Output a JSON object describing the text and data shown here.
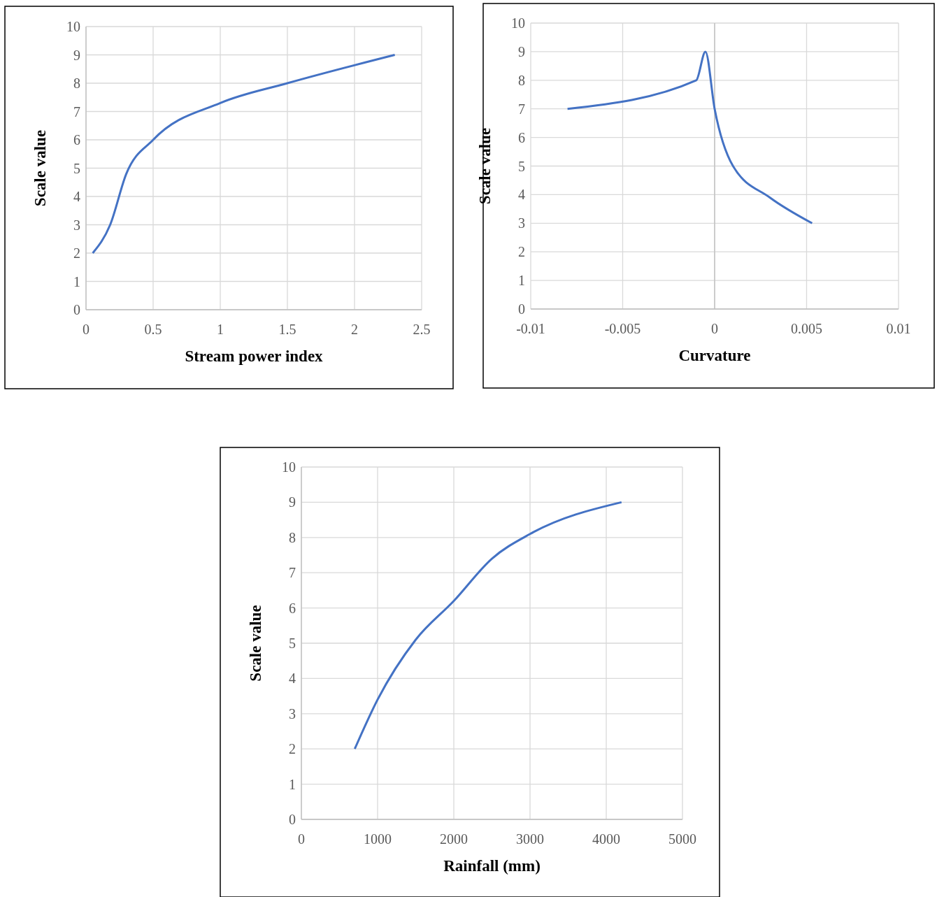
{
  "chart_data": [
    {
      "type": "line",
      "xlabel": "Stream power index",
      "ylabel": "Scale value",
      "x": [
        0.05,
        0.18,
        0.3,
        0.5,
        1,
        1.5,
        2.3
      ],
      "series": [
        {
          "color": "#4472c4",
          "values": [
            2,
            3,
            4.8,
            6,
            7.3,
            8,
            9
          ]
        }
      ],
      "xlim": [
        0,
        2.5
      ],
      "xticks": [
        0,
        0.5,
        1,
        1.5,
        2,
        2.5
      ],
      "ylim": [
        0,
        10
      ],
      "yticks": [
        0,
        1,
        2,
        3,
        4,
        5,
        6,
        7,
        8,
        9,
        10
      ],
      "grid": true
    },
    {
      "type": "line",
      "xlabel": "Curvature",
      "ylabel": "Scale value",
      "x": [
        -0.008,
        -0.001,
        -0.0005,
        0,
        0.001,
        0.003,
        0.0053
      ],
      "series": [
        {
          "color": "#4472c4",
          "values": [
            7,
            8,
            9,
            7,
            5,
            3.9,
            3
          ]
        }
      ],
      "xlim": [
        -0.01,
        0.01
      ],
      "xticks": [
        -0.01,
        -0.005,
        0,
        0.005,
        0.01
      ],
      "ylim": [
        0,
        10
      ],
      "yticks": [
        0,
        1,
        2,
        3,
        4,
        5,
        6,
        7,
        8,
        9,
        10
      ],
      "grid": true
    },
    {
      "type": "line",
      "xlabel": "Rainfall (mm)",
      "ylabel": "Scale value",
      "x": [
        700,
        1000,
        1500,
        2000,
        2500,
        3000,
        4200
      ],
      "series": [
        {
          "color": "#4472c4",
          "values": [
            2,
            3.4,
            5.1,
            6.2,
            7.4,
            8.1,
            9
          ]
        }
      ],
      "xlim": [
        0,
        5000
      ],
      "xticks": [
        0,
        1000,
        2000,
        3000,
        4000,
        5000
      ],
      "ylim": [
        0,
        10
      ],
      "yticks": [
        0,
        1,
        2,
        3,
        4,
        5,
        6,
        7,
        8,
        9,
        10
      ],
      "grid": true
    }
  ]
}
